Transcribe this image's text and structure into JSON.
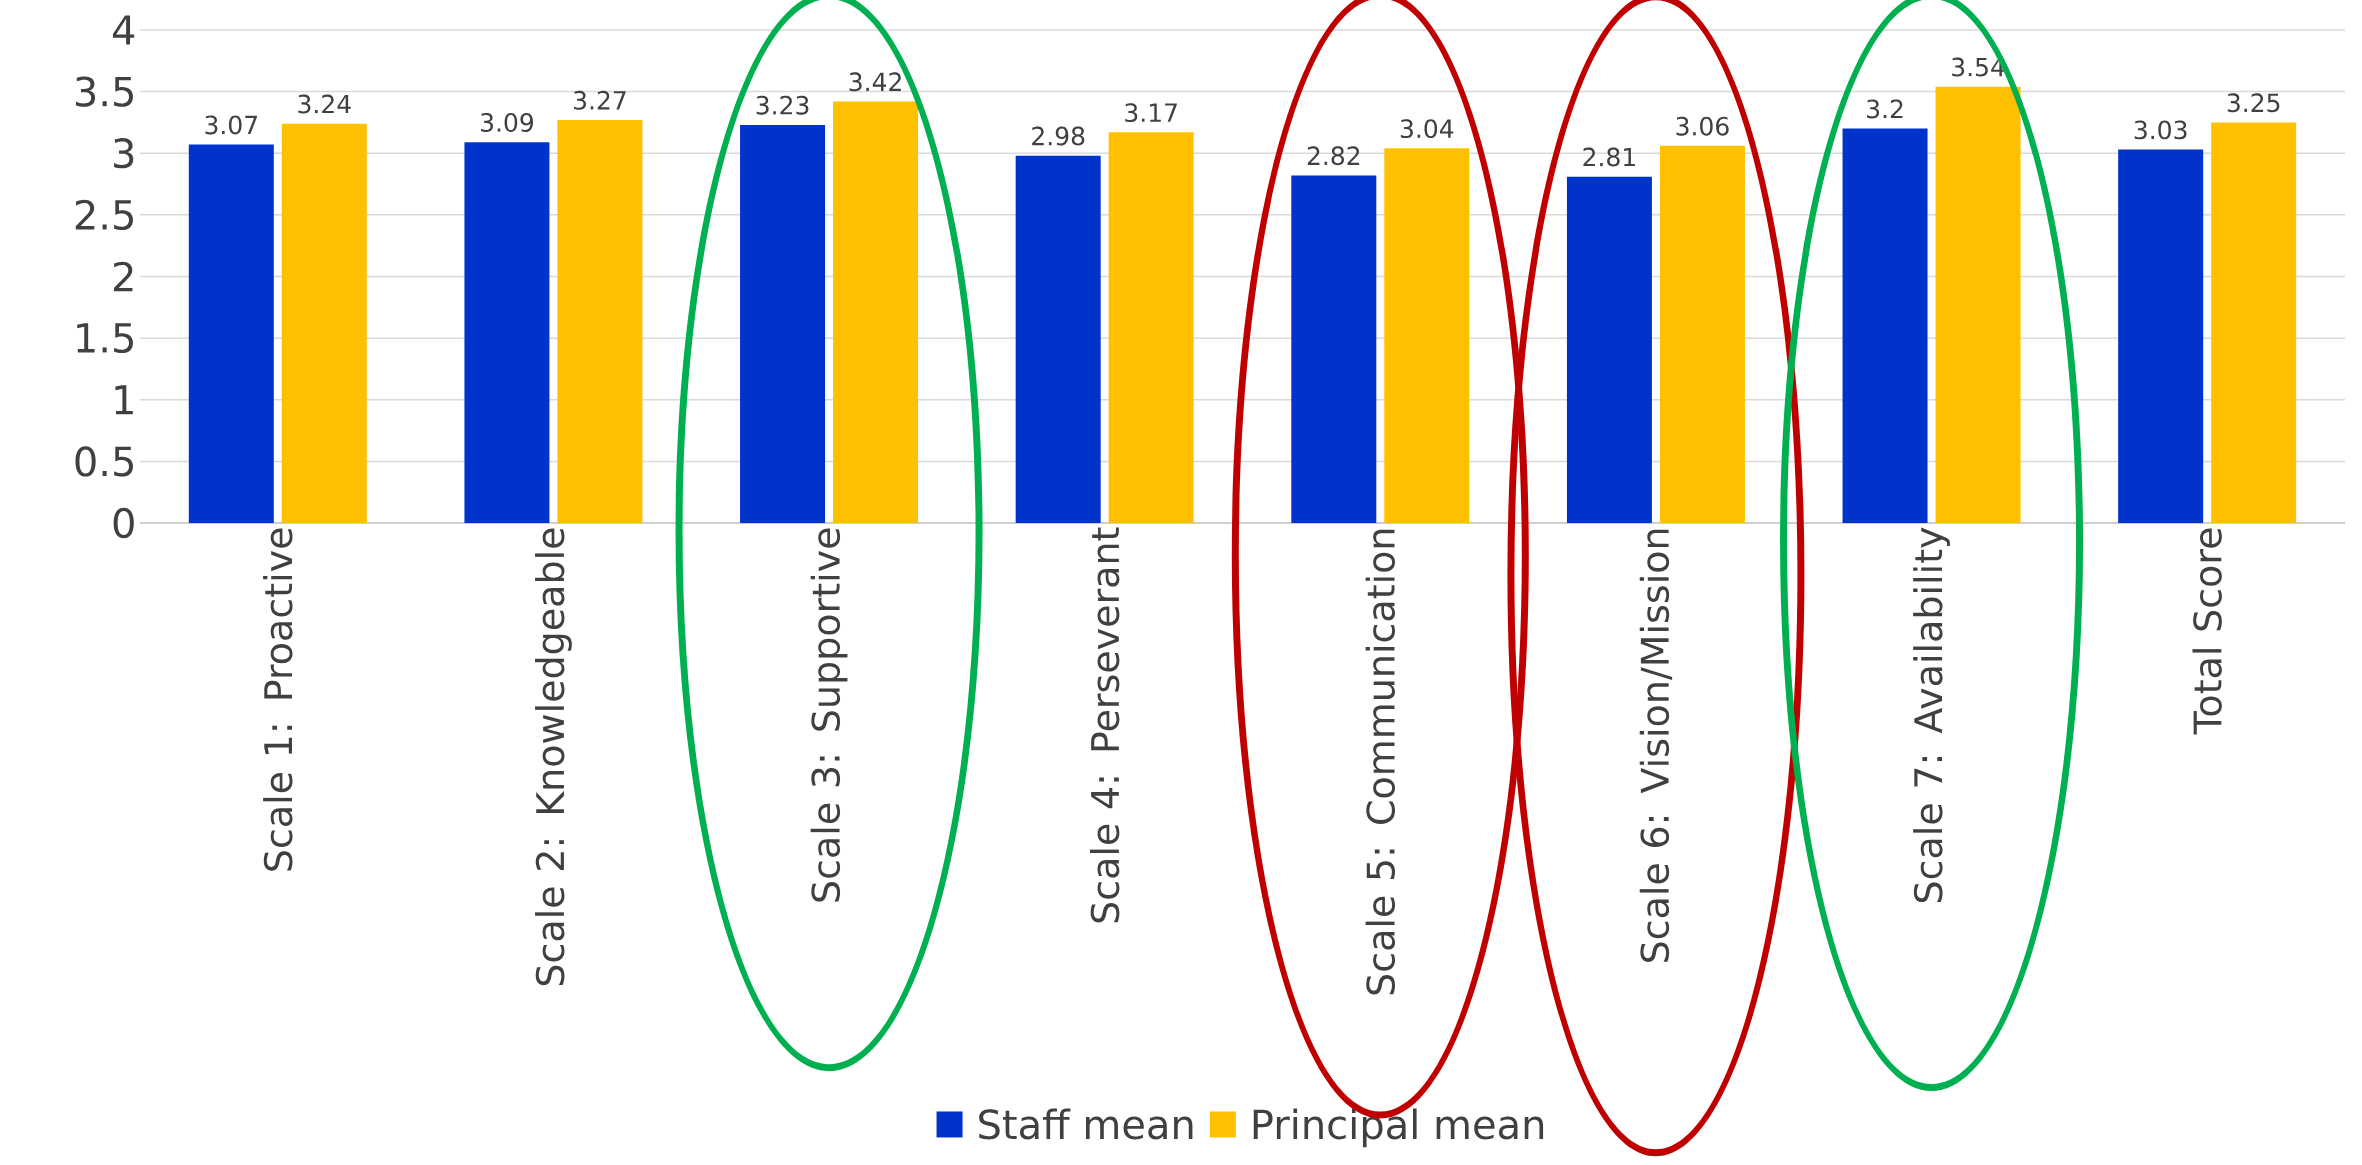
{
  "chart_data": {
    "type": "bar",
    "categories": [
      "Scale 1: Proactive",
      "Scale 2: Knowledgeable",
      "Scale 3: Supportive",
      "Scale 4: Perseverant",
      "Scale 5: Communication",
      "Scale 6: Vision/Mission",
      "Scale 7: Availability",
      "Total Score"
    ],
    "series": [
      {
        "name": "Staff mean",
        "color": "#0033cc",
        "values": [
          3.07,
          3.09,
          3.23,
          2.98,
          2.82,
          2.81,
          3.2,
          3.03
        ],
        "value_labels": [
          "3.07",
          "3.09",
          "3.23",
          "2.98",
          "2.82",
          "2.81",
          "3.2",
          "3.03"
        ]
      },
      {
        "name": "Principal mean",
        "color": "#ffc000",
        "values": [
          3.24,
          3.27,
          3.42,
          3.17,
          3.04,
          3.06,
          3.54,
          3.25
        ],
        "value_labels": [
          "3.24",
          "3.27",
          "3.42",
          "3.17",
          "3.04",
          "3.06",
          "3.54",
          "3.25"
        ]
      }
    ],
    "ylim": [
      0,
      4
    ],
    "yticks": [
      0,
      0.5,
      1,
      1.5,
      2,
      2.5,
      3,
      3.5,
      4
    ],
    "grid": "y",
    "legend": "bottom"
  }
}
